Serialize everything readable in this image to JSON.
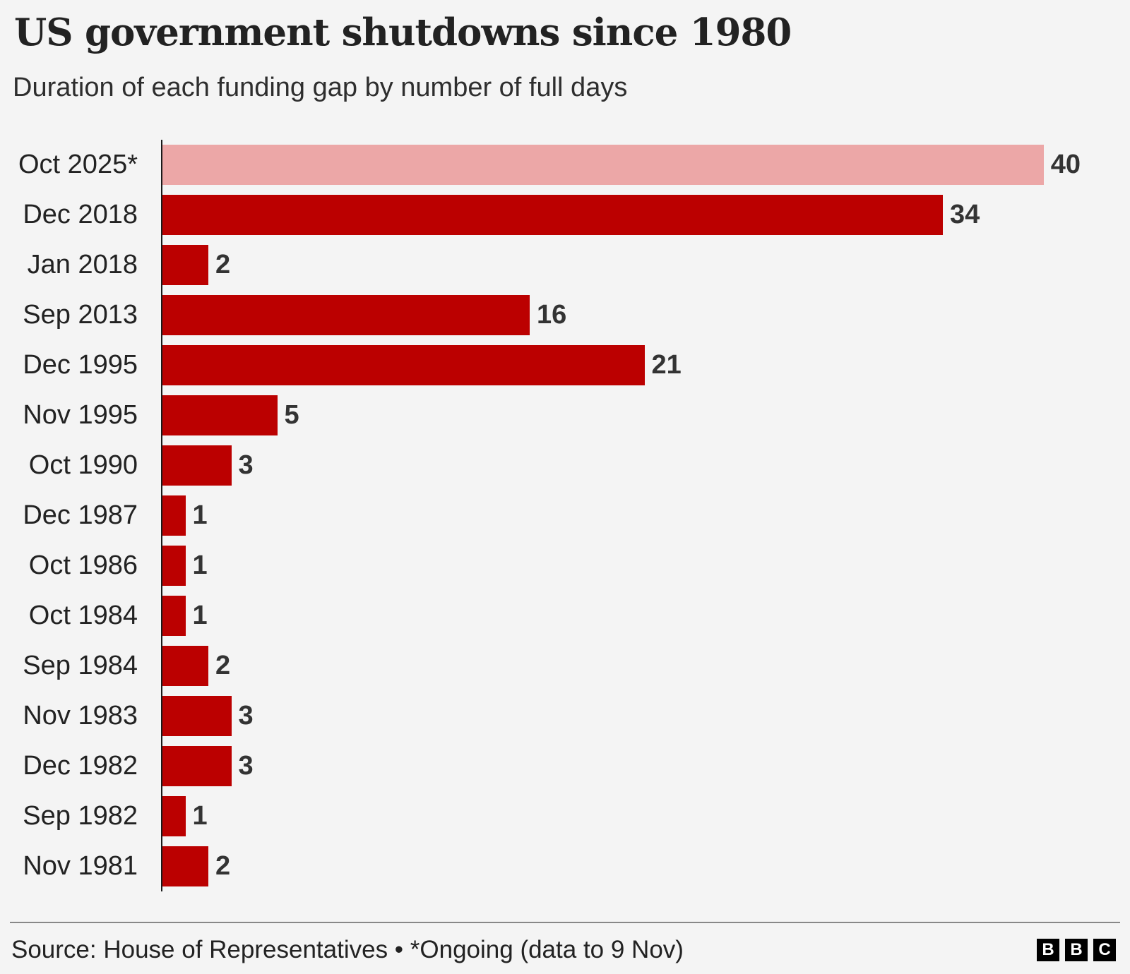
{
  "header": {
    "title": "US government shutdowns since 1980",
    "subtitle": "Duration of each funding gap by number of full days"
  },
  "chart_data": {
    "type": "bar",
    "orientation": "horizontal",
    "title": "US government shutdowns since 1980",
    "subtitle": "Duration of each funding gap by number of full days",
    "categories": [
      "Oct 2025*",
      "Dec 2018",
      "Jan 2018",
      "Sep 2013",
      "Dec 1995",
      "Nov 1995",
      "Oct 1990",
      "Dec 1987",
      "Oct 1986",
      "Oct 1984",
      "Sep 1984",
      "Nov 1983",
      "Dec 1982",
      "Sep 1982",
      "Nov 1981"
    ],
    "values": [
      40,
      34,
      2,
      16,
      21,
      5,
      3,
      1,
      1,
      1,
      2,
      3,
      3,
      1,
      2
    ],
    "xlabel": "",
    "ylabel": "",
    "xlim": [
      0,
      40
    ],
    "grid": false,
    "legend": "none",
    "value_labels": "end-of-bar",
    "highlight_index": 0,
    "highlight_meaning": "Ongoing shutdown (lighter pink bar)"
  },
  "colors": {
    "background": "#f4f4f4",
    "bar": "#bb0000",
    "bar_ongoing": "#eca7a7",
    "text": "#222222",
    "value_text": "#333333",
    "axis": "#1a1a1a",
    "divider": "#888888",
    "logo_bg": "#000000",
    "logo_text": "#ffffff"
  },
  "footer": {
    "source": "Source: House of Representatives • *Ongoing (data to 9 Nov)",
    "logo_letters": [
      "B",
      "B",
      "C"
    ]
  }
}
